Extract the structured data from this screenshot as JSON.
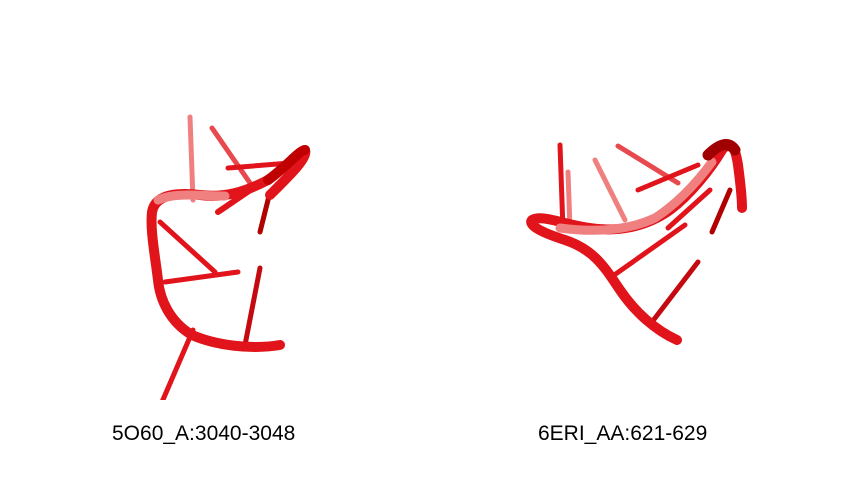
{
  "panels": [
    {
      "label": "5O60_A:3040-3048",
      "icon": "rna-backbone-cartoon-icon"
    },
    {
      "label": "6ERI_AA:621-629",
      "icon": "rna-backbone-cartoon-icon"
    }
  ],
  "colors": {
    "backbone": "#e0141a",
    "backbone_light": "#f07a7a",
    "backbone_dark": "#b00000",
    "background": "#ffffff"
  }
}
